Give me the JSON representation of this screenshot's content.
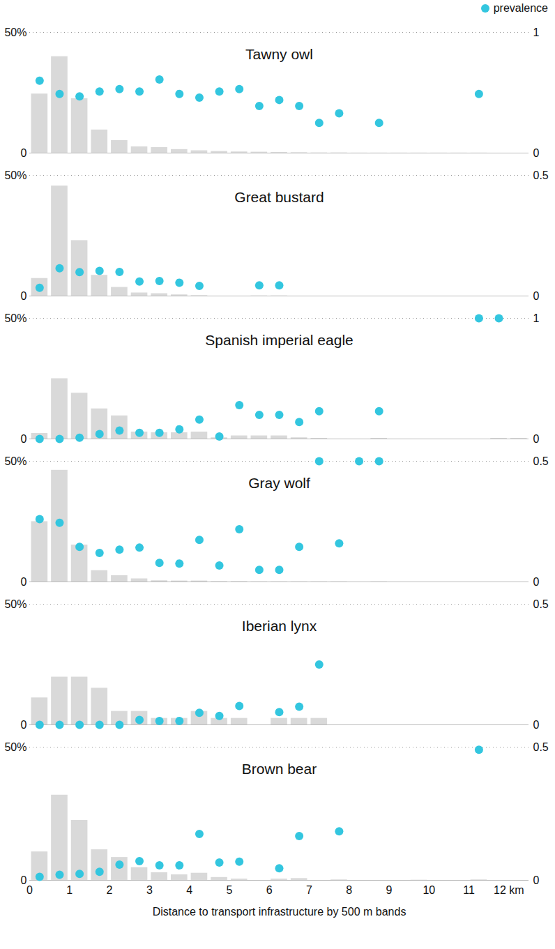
{
  "chart_data": [
    {
      "type": "bar",
      "title": "Tawny owl",
      "legend": "top-right",
      "grid": true,
      "bins": [
        0,
        0.5,
        1,
        1.5,
        2,
        2.5,
        3,
        3.5,
        4,
        4.5,
        5,
        5.5,
        6,
        6.5,
        7,
        7.5,
        8,
        8.5,
        9,
        9.5,
        10,
        10.5,
        11,
        11.5,
        12,
        12.5
      ],
      "xlim": [
        0,
        12.5
      ],
      "ylim": [
        0,
        50
      ],
      "yticks": [
        0,
        {
          "value": 50,
          "label": "50%"
        }
      ],
      "y2lim": [
        0,
        1
      ],
      "y2ticks": [
        0,
        1
      ],
      "series": [
        {
          "type": "bar",
          "color": "#d9d9d9",
          "values": [
            24.5,
            40,
            22.6,
            9.6,
            5.2,
            2.6,
            2.3,
            1.5,
            1,
            0.7,
            0.5,
            0.4,
            0.3,
            0.2,
            0.1,
            0.1,
            0.05,
            0.05,
            0.05,
            0.05,
            0.05,
            0.05,
            0.05,
            0,
            0
          ]
        },
        {
          "name": "prevalence",
          "type": "scatter",
          "marker": "circle",
          "axis": "y2",
          "color": "#33c6df",
          "values": [
            0.6,
            0.49,
            0.47,
            0.51,
            0.53,
            0.51,
            0.61,
            0.49,
            0.46,
            0.51,
            0.53,
            0.39,
            0.44,
            0.39,
            0.25,
            0.33,
            null,
            0.25,
            null,
            null,
            null,
            null,
            0.49,
            null,
            null
          ]
        }
      ]
    },
    {
      "type": "bar",
      "title": "Great bustard",
      "grid": true,
      "bins": [
        0,
        0.5,
        1,
        1.5,
        2,
        2.5,
        3,
        3.5,
        4,
        4.5,
        5,
        5.5,
        6,
        6.5,
        7,
        7.5,
        8,
        8.5,
        9,
        9.5,
        10,
        10.5,
        11,
        11.5,
        12,
        12.5
      ],
      "xlim": [
        0,
        12.5
      ],
      "ylim": [
        0,
        50
      ],
      "yticks": [
        0,
        {
          "value": 50,
          "label": "50%"
        }
      ],
      "y2lim": [
        0,
        0.5
      ],
      "y2ticks": [
        0,
        0.5
      ],
      "series": [
        {
          "type": "bar",
          "color": "#d9d9d9",
          "values": [
            7.3,
            45.6,
            23,
            8.6,
            3.6,
            1.3,
            1,
            0.5,
            0.2,
            0,
            0,
            0.1,
            0.1,
            0,
            0,
            0,
            0,
            0,
            0,
            0,
            0,
            0,
            0,
            0,
            0
          ]
        },
        {
          "name": "prevalence",
          "type": "scatter",
          "marker": "circle",
          "axis": "y2",
          "color": "#33c6df",
          "values": [
            0.034,
            0.115,
            0.099,
            0.104,
            0.1,
            0.06,
            0.062,
            0.055,
            0.042,
            null,
            null,
            0.044,
            0.044,
            null,
            null,
            null,
            null,
            null,
            null,
            null,
            null,
            null,
            null,
            null,
            null
          ]
        }
      ]
    },
    {
      "type": "bar",
      "title": "Spanish imperial eagle",
      "grid": true,
      "bins": [
        0,
        0.5,
        1,
        1.5,
        2,
        2.5,
        3,
        3.5,
        4,
        4.5,
        5,
        5.5,
        6,
        6.5,
        7,
        7.5,
        8,
        8.5,
        9,
        9.5,
        10,
        10.5,
        11,
        11.5,
        12,
        12.5
      ],
      "xlim": [
        0,
        12.5
      ],
      "ylim": [
        0,
        50
      ],
      "yticks": [
        0,
        {
          "value": 50,
          "label": "50%"
        }
      ],
      "y2lim": [
        0,
        1
      ],
      "y2ticks": [
        0,
        1
      ],
      "series": [
        {
          "type": "bar",
          "color": "#d9d9d9",
          "values": [
            2.3,
            25,
            19,
            12.5,
            9.6,
            2.9,
            2.6,
            2.6,
            2.9,
            0.5,
            1.3,
            1.3,
            1.3,
            0.5,
            0.3,
            0,
            0,
            0.3,
            0,
            0,
            0,
            0,
            0,
            0.3,
            0.3
          ]
        },
        {
          "name": "prevalence",
          "type": "scatter",
          "marker": "circle",
          "axis": "y2",
          "color": "#33c6df",
          "values": [
            0,
            0,
            0.01,
            0.04,
            0.07,
            0.05,
            0.05,
            0.08,
            0.16,
            0.02,
            0.28,
            0.2,
            0.2,
            0.14,
            0.23,
            null,
            null,
            0.23,
            null,
            null,
            null,
            null,
            1,
            1,
            null
          ]
        }
      ]
    },
    {
      "type": "bar",
      "title": "Gray wolf",
      "grid": true,
      "bins": [
        0,
        0.5,
        1,
        1.5,
        2,
        2.5,
        3,
        3.5,
        4,
        4.5,
        5,
        5.5,
        6,
        6.5,
        7,
        7.5,
        8,
        8.5,
        9,
        9.5,
        10,
        10.5,
        11,
        11.5,
        12,
        12.5
      ],
      "xlim": [
        0,
        12.5
      ],
      "ylim": [
        0,
        50
      ],
      "yticks": [
        0,
        {
          "value": 50,
          "label": "50%"
        }
      ],
      "y2lim": [
        0,
        0.5
      ],
      "y2ticks": [
        0,
        0.5
      ],
      "series": [
        {
          "type": "bar",
          "color": "#d9d9d9",
          "values": [
            25,
            46.3,
            15.3,
            4.7,
            2.6,
            1.3,
            0.5,
            0.4,
            0.4,
            0.2,
            0.2,
            0.1,
            0.1,
            0.1,
            0.1,
            0.1,
            0,
            0.1,
            0,
            0,
            0,
            0,
            0,
            0,
            0
          ]
        },
        {
          "name": "prevalence",
          "type": "scatter",
          "marker": "circle",
          "axis": "y2",
          "color": "#33c6df",
          "values": [
            0.26,
            0.245,
            0.145,
            0.12,
            0.134,
            0.142,
            0.079,
            0.076,
            0.174,
            0.068,
            0.218,
            0.05,
            0.05,
            0.145,
            0.5,
            0.16,
            0.5,
            0.5,
            null,
            null,
            null,
            null,
            null,
            null,
            null
          ]
        }
      ]
    },
    {
      "type": "bar",
      "title": "Iberian lynx",
      "grid": true,
      "bins": [
        0,
        0.5,
        1,
        1.5,
        2,
        2.5,
        3,
        3.5,
        4,
        4.5,
        5,
        5.5,
        6,
        6.5,
        7,
        7.5,
        8,
        8.5,
        9,
        9.5,
        10,
        10.5,
        11,
        11.5,
        12,
        12.5
      ],
      "xlim": [
        0,
        12.5
      ],
      "ylim": [
        0,
        50
      ],
      "yticks": [
        0,
        {
          "value": 50,
          "label": "50%"
        }
      ],
      "y2lim": [
        0,
        0.5
      ],
      "y2ticks": [
        0,
        0.5
      ],
      "series": [
        {
          "type": "bar",
          "color": "#d9d9d9",
          "values": [
            11.2,
            19.8,
            19.8,
            15.2,
            5.6,
            5.6,
            2.7,
            2.7,
            5.6,
            2.7,
            2.7,
            0,
            2.7,
            2.7,
            2.7,
            0,
            0,
            0,
            0,
            0,
            0,
            0,
            0,
            0,
            0
          ]
        },
        {
          "name": "prevalence",
          "type": "scatter",
          "marker": "circle",
          "axis": "y2",
          "color": "#33c6df",
          "values": [
            0,
            0,
            0,
            0,
            0,
            0.02,
            0.016,
            0.016,
            0.05,
            0.037,
            0.078,
            null,
            0.053,
            0.075,
            0.25,
            null,
            null,
            null,
            null,
            null,
            null,
            null,
            null,
            null,
            null
          ]
        }
      ]
    },
    {
      "type": "bar",
      "title": "Brown bear",
      "grid": true,
      "bins": [
        0,
        0.5,
        1,
        1.5,
        2,
        2.5,
        3,
        3.5,
        4,
        4.5,
        5,
        5.5,
        6,
        6.5,
        7,
        7.5,
        8,
        8.5,
        9,
        9.5,
        10,
        10.5,
        11,
        11.5,
        12,
        12.5
      ],
      "xlim": [
        0,
        12.5
      ],
      "xticks": [
        0,
        1,
        2,
        3,
        4,
        5,
        6,
        7,
        8,
        9,
        10,
        11,
        {
          "value": 12,
          "label": "12 km"
        }
      ],
      "xlabel": "Distance to transport infrastructure by 500 m bands",
      "ylim": [
        0,
        50
      ],
      "yticks": [
        0,
        {
          "value": 50,
          "label": "50%"
        }
      ],
      "y2lim": [
        0,
        0.5
      ],
      "y2ticks": [
        0,
        0.5
      ],
      "series": [
        {
          "type": "bar",
          "color": "#d9d9d9",
          "values": [
            10.7,
            32,
            22.5,
            11.5,
            8.6,
            4.8,
            2.9,
            2.1,
            2.7,
            1.1,
            0.5,
            0,
            0.5,
            0.7,
            0,
            0.2,
            0,
            0,
            0,
            0.1,
            0,
            0,
            0.2,
            0,
            0
          ]
        },
        {
          "name": "prevalence",
          "type": "scatter",
          "marker": "circle",
          "axis": "y2",
          "color": "#33c6df",
          "values": [
            0.013,
            0.021,
            0.024,
            0.032,
            0.059,
            0.072,
            0.056,
            0.056,
            0.174,
            0.067,
            0.07,
            null,
            0.045,
            0.166,
            null,
            0.184,
            null,
            null,
            null,
            null,
            null,
            null,
            0.49,
            null,
            null
          ]
        }
      ]
    }
  ]
}
